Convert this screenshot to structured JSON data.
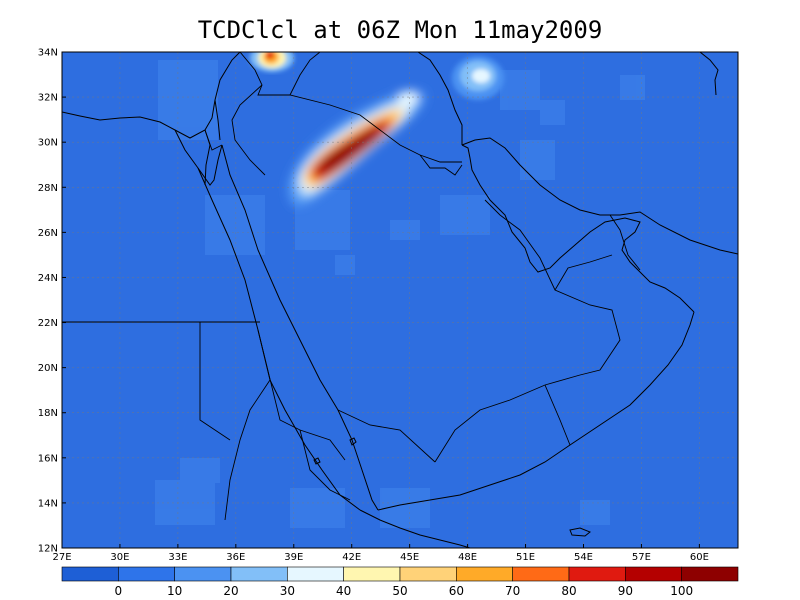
{
  "title": "TCDClcl at 06Z Mon 11may2009",
  "map": {
    "lon_range": [
      27,
      62
    ],
    "lat_range": [
      12,
      34
    ],
    "lon_ticks": [
      "27E",
      "30E",
      "33E",
      "36E",
      "39E",
      "42E",
      "45E",
      "48E",
      "51E",
      "54E",
      "57E",
      "60E"
    ],
    "lat_ticks": [
      "12N",
      "14N",
      "16N",
      "18N",
      "20N",
      "22N",
      "24N",
      "26N",
      "28N",
      "30N",
      "32N",
      "34N"
    ],
    "gridlines": true,
    "background_color": "#2e6ee0"
  },
  "colorbar": {
    "colors": [
      "#1e5fd6",
      "#2e74ea",
      "#4b92f2",
      "#82bff8",
      "#e6f7ff",
      "#fff6b0",
      "#ffd278",
      "#ffaa28",
      "#ff6a16",
      "#e01a10",
      "#b40000",
      "#8e0000"
    ],
    "labels": [
      "0",
      "10",
      "20",
      "30",
      "40",
      "50",
      "60",
      "70",
      "80",
      "90",
      "100"
    ]
  }
}
